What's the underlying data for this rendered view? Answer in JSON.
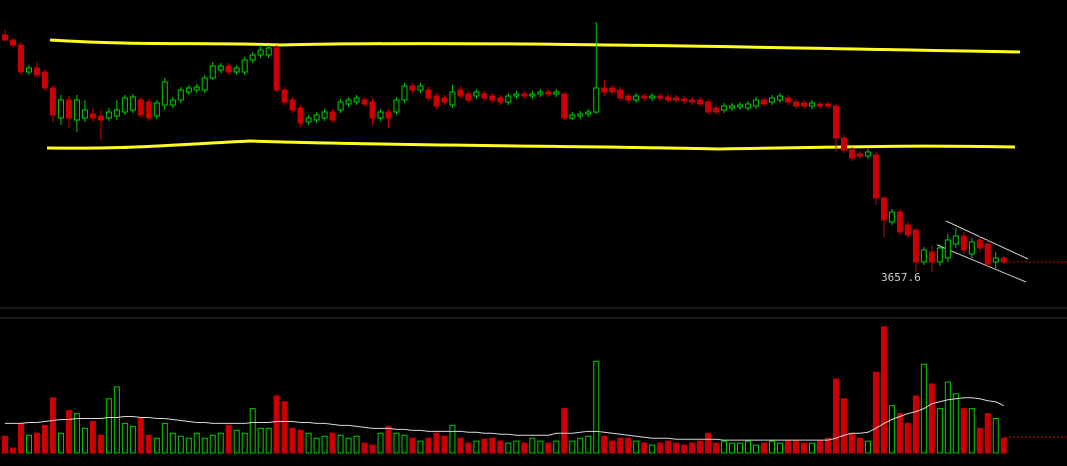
{
  "chart_data": {
    "type": "candlestick",
    "open": [
      8400,
      8300,
      8200,
      7660,
      7740,
      7660,
      7340,
      6740,
      7100,
      6700,
      6740,
      6820,
      6780,
      6740,
      6780,
      6860,
      6900,
      7100,
      7060,
      6780,
      7000,
      7000,
      7100,
      7260,
      7300,
      7300,
      7540,
      7700,
      7780,
      7660,
      7660,
      7900,
      8000,
      8000,
      8140,
      7300,
      7100,
      6940,
      6660,
      6700,
      6740,
      6860,
      6900,
      7020,
      7060,
      7100,
      7060,
      6740,
      6860,
      6860,
      7100,
      7380,
      7300,
      7300,
      7180,
      7140,
      7000,
      7300,
      7220,
      7180,
      7220,
      7180,
      7140,
      7060,
      7180,
      7220,
      7180,
      7220,
      7260,
      7220,
      7220,
      6740,
      6780,
      6820,
      6860,
      7340,
      7340,
      7300,
      7180,
      7100,
      7180,
      7140,
      7180,
      7160,
      7140,
      7120,
      7100,
      7100,
      7060,
      6940,
      6900,
      6940,
      6960,
      6940,
      6980,
      7100,
      7060,
      7100,
      7140,
      7060,
      7040,
      6980,
      7020,
      7020,
      6980,
      6340,
      6100,
      6020,
      5980,
      6000,
      5140,
      4660,
      4860,
      4600,
      4500,
      3860,
      4060,
      3860,
      3940,
      4220,
      4380,
      4020,
      4300,
      4220,
      3860,
      3940
    ],
    "high": [
      8500,
      8340,
      8260,
      7800,
      7860,
      7720,
      7400,
      7200,
      7180,
      7200,
      7100,
      6940,
      6900,
      6940,
      7100,
      7200,
      7220,
      7160,
      7120,
      7100,
      7540,
      7160,
      7360,
      7400,
      7420,
      7600,
      7860,
      7840,
      7840,
      7800,
      7960,
      8060,
      8200,
      8200,
      8200,
      7360,
      7160,
      7000,
      6800,
      6860,
      6920,
      6920,
      7120,
      7160,
      7200,
      7160,
      7140,
      6920,
      6920,
      7160,
      7440,
      7440,
      7440,
      7360,
      7240,
      7200,
      7400,
      7360,
      7280,
      7320,
      7280,
      7240,
      7200,
      7240,
      7280,
      7280,
      7280,
      7320,
      7320,
      7320,
      7260,
      6860,
      6880,
      6920,
      8660,
      7500,
      7400,
      7360,
      7240,
      7240,
      7240,
      7240,
      7240,
      7220,
      7200,
      7180,
      7160,
      7160,
      7120,
      7000,
      7040,
      7040,
      7060,
      7080,
      7160,
      7160,
      7200,
      7240,
      7200,
      7120,
      7100,
      7100,
      7080,
      7080,
      7020,
      6400,
      6160,
      6080,
      6120,
      6060,
      5180,
      4920,
      4920,
      4660,
      4540,
      4160,
      4200,
      4220,
      4420,
      4540,
      4460,
      4340,
      4380,
      4300,
      4060,
      3980
    ],
    "low": [
      8260,
      8140,
      7600,
      7600,
      7540,
      7280,
      6660,
      6600,
      6540,
      6460,
      6660,
      6660,
      6300,
      6680,
      6700,
      6800,
      6840,
      6740,
      6680,
      6720,
      6900,
      6940,
      7040,
      7200,
      7240,
      7240,
      7500,
      7640,
      7600,
      7600,
      7600,
      7840,
      7940,
      7940,
      7260,
      7000,
      6840,
      6560,
      6600,
      6640,
      6680,
      6640,
      6840,
      6960,
      7000,
      6960,
      6600,
      6680,
      6540,
      6800,
      7040,
      7240,
      7240,
      7080,
      6920,
      7000,
      6940,
      7120,
      7040,
      7120,
      7080,
      7040,
      7000,
      7000,
      7120,
      7120,
      7120,
      7160,
      7160,
      7160,
      6700,
      6700,
      6720,
      6760,
      6820,
      7180,
      7200,
      7080,
      7040,
      7040,
      7080,
      7080,
      7080,
      7040,
      7040,
      7020,
      7000,
      6960,
      6800,
      6800,
      6840,
      6880,
      6900,
      6880,
      6920,
      6960,
      7000,
      7040,
      7000,
      6920,
      6920,
      6920,
      6920,
      6920,
      6060,
      6040,
      5880,
      5920,
      5920,
      5000,
      4340,
      4600,
      4400,
      4340,
      3660,
      3800,
      3657.6,
      3780,
      3860,
      4140,
      4020,
      3940,
      4060,
      3740,
      3740,
      3820
    ],
    "close": [
      8300,
      8200,
      7660,
      7740,
      7600,
      7340,
      6800,
      7100,
      6740,
      7100,
      6900,
      6740,
      6700,
      6860,
      6900,
      7140,
      7160,
      6800,
      6740,
      7040,
      7460,
      7100,
      7300,
      7340,
      7360,
      7540,
      7780,
      7780,
      7660,
      7740,
      7900,
      8000,
      8100,
      8140,
      7300,
      7060,
      6900,
      6640,
      6740,
      6800,
      6860,
      6700,
      7060,
      7100,
      7140,
      7020,
      6740,
      6860,
      6740,
      7100,
      7380,
      7300,
      7380,
      7140,
      6980,
      7060,
      7260,
      7180,
      7100,
      7260,
      7140,
      7100,
      7060,
      7180,
      7220,
      7180,
      7220,
      7260,
      7220,
      7260,
      6740,
      6800,
      6820,
      6860,
      7340,
      7260,
      7260,
      7140,
      7100,
      7180,
      7140,
      7180,
      7140,
      7100,
      7100,
      7080,
      7060,
      7020,
      6860,
      6860,
      6980,
      6980,
      7000,
      7020,
      7100,
      7020,
      7140,
      7180,
      7060,
      6980,
      6980,
      7040,
      6980,
      6980,
      6340,
      6100,
      5940,
      5980,
      6060,
      5140,
      4700,
      4860,
      4460,
      4400,
      3860,
      4100,
      3860,
      4140,
      4300,
      4380,
      4100,
      4260,
      4140,
      3820,
      3940,
      3860
    ],
    "volume": [
      17,
      5,
      30,
      18,
      20,
      28,
      56,
      20,
      43,
      40,
      25,
      32,
      18,
      55,
      67,
      30,
      27,
      35,
      18,
      15,
      30,
      20,
      17,
      15,
      20,
      15,
      18,
      20,
      28,
      23,
      20,
      45,
      25,
      25,
      58,
      52,
      25,
      23,
      20,
      15,
      17,
      20,
      18,
      15,
      17,
      10,
      8,
      20,
      27,
      20,
      18,
      15,
      12,
      15,
      20,
      17,
      28,
      15,
      10,
      12,
      14,
      15,
      12,
      10,
      12,
      10,
      15,
      12,
      10,
      12,
      45,
      12,
      15,
      17,
      93,
      17,
      12,
      15,
      15,
      12,
      10,
      8,
      10,
      12,
      10,
      8,
      10,
      12,
      20,
      10,
      12,
      10,
      10,
      12,
      8,
      10,
      12,
      10,
      12,
      12,
      10,
      10,
      12,
      15,
      75,
      55,
      20,
      15,
      12,
      82,
      128,
      48,
      40,
      30,
      58,
      90,
      70,
      45,
      72,
      60,
      45,
      45,
      25,
      40,
      35,
      15
    ],
    "volume_ma": [
      30,
      30,
      30,
      31,
      31,
      32,
      33,
      34,
      34,
      35,
      35,
      35,
      35,
      36,
      36,
      37,
      37,
      36,
      36,
      35,
      35,
      34,
      33,
      32,
      31,
      31,
      30,
      30,
      30,
      30,
      30,
      31,
      31,
      31,
      32,
      32,
      32,
      31,
      31,
      30,
      30,
      29,
      28,
      28,
      27,
      26,
      25,
      25,
      25,
      24,
      24,
      23,
      23,
      22,
      22,
      22,
      22,
      22,
      21,
      21,
      20,
      20,
      19,
      19,
      18,
      18,
      18,
      18,
      18,
      20,
      20,
      20,
      21,
      22,
      22,
      21,
      20,
      19,
      18,
      17,
      16,
      15,
      15,
      15,
      14,
      14,
      14,
      14,
      14,
      14,
      13,
      13,
      13,
      13,
      13,
      13,
      13,
      13,
      13,
      13,
      13,
      13,
      13,
      13,
      15,
      18,
      20,
      20,
      21,
      25,
      30,
      34,
      37,
      40,
      42,
      45,
      50,
      52,
      54,
      55,
      56,
      56,
      55,
      53,
      52,
      48
    ],
    "ylim": [
      3100,
      8900
    ],
    "y2lim": [
      0,
      140
    ],
    "up_color": "#00d000",
    "down_color": "#cc0000",
    "ma_color": "#d8d8d8"
  }
}
